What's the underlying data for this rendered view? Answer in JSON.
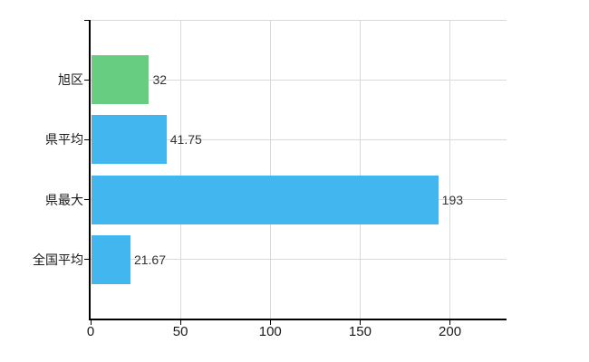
{
  "chart_data": {
    "type": "bar",
    "orientation": "horizontal",
    "title": "",
    "xlabel": "",
    "ylabel": "",
    "categories": [
      "旭区",
      "県平均",
      "県最大",
      "全国平均"
    ],
    "values": [
      32,
      41.75,
      193,
      21.67
    ],
    "value_labels": [
      "32",
      "41.75",
      "193",
      "21.67"
    ],
    "bar_colors": [
      "#67ce81",
      "#42b7ef",
      "#42b7ef",
      "#42b7ef"
    ],
    "x_ticks": [
      0,
      50,
      100,
      150,
      200
    ],
    "x_tick_labels": [
      "0",
      "50",
      "100",
      "150",
      "200"
    ],
    "xlim": [
      0,
      231.5
    ],
    "grid": true,
    "legend": false,
    "colors": {
      "green_bar": "#67ce81",
      "blue_bar": "#42b7ef",
      "gridline": "#d9d9d9",
      "axis": "#000000",
      "text": "#1a1a1a",
      "value_text": "#333333",
      "background": "#ffffff"
    }
  }
}
